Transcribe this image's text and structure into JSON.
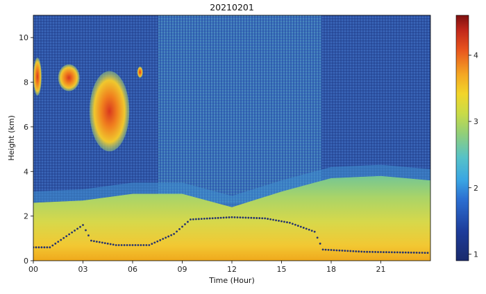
{
  "chart_data": {
    "type": "heatmap",
    "title": "20210201",
    "xlabel": "Time (Hour)",
    "ylabel": "Height (km)",
    "xlim": [
      0,
      24
    ],
    "ylim": [
      0,
      11
    ],
    "x_ticks": [
      {
        "value": 0,
        "label": "00"
      },
      {
        "value": 3,
        "label": "03"
      },
      {
        "value": 6,
        "label": "06"
      },
      {
        "value": 9,
        "label": "09"
      },
      {
        "value": 12,
        "label": "12"
      },
      {
        "value": 15,
        "label": "15"
      },
      {
        "value": 18,
        "label": "18"
      },
      {
        "value": 21,
        "label": "21"
      }
    ],
    "y_ticks": [
      0,
      2,
      4,
      6,
      8,
      10
    ],
    "colorbar": {
      "range": [
        0.9,
        4.6
      ],
      "ticks": [
        1,
        2,
        3,
        4
      ],
      "colormap": "jet"
    },
    "colors": {
      "background_noise": "#2d56a8",
      "boundary_layer": "#f2c233",
      "cloud_core": "#d9381e"
    },
    "features": {
      "boundary_layer_top_km": [
        {
          "x": 0,
          "y": 2.6
        },
        {
          "x": 3,
          "y": 2.7
        },
        {
          "x": 6,
          "y": 3.0
        },
        {
          "x": 9,
          "y": 3.0
        },
        {
          "x": 12,
          "y": 2.4
        },
        {
          "x": 15,
          "y": 3.1
        },
        {
          "x": 18,
          "y": 3.7
        },
        {
          "x": 21,
          "y": 3.8
        },
        {
          "x": 24,
          "y": 3.6
        }
      ],
      "mixing_layer_height_km": [
        {
          "x": 0,
          "y": 0.6
        },
        {
          "x": 1,
          "y": 0.6
        },
        {
          "x": 2,
          "y": 1.1
        },
        {
          "x": 3,
          "y": 1.6
        },
        {
          "x": 3.5,
          "y": 0.9
        },
        {
          "x": 5,
          "y": 0.7
        },
        {
          "x": 7,
          "y": 0.7
        },
        {
          "x": 8.5,
          "y": 1.2
        },
        {
          "x": 9.5,
          "y": 1.85
        },
        {
          "x": 12,
          "y": 1.95
        },
        {
          "x": 14,
          "y": 1.9
        },
        {
          "x": 15.5,
          "y": 1.7
        },
        {
          "x": 17,
          "y": 1.3
        },
        {
          "x": 17.5,
          "y": 0.5
        },
        {
          "x": 20,
          "y": 0.4
        },
        {
          "x": 24,
          "y": 0.35
        }
      ],
      "cloud_values": [
        {
          "time_range": [
            0,
            0.5
          ],
          "height_range": [
            7.4,
            9.1
          ],
          "value": 3.9
        },
        {
          "time_range": [
            1.5,
            2.8
          ],
          "height_range": [
            7.6,
            8.8
          ],
          "value": 3.8
        },
        {
          "time_range": [
            3.4,
            5.8
          ],
          "height_range": [
            4.9,
            8.5
          ],
          "value": 4.0
        },
        {
          "time_range": [
            6.3,
            6.6
          ],
          "height_range": [
            8.2,
            8.7
          ],
          "value": 3.3
        }
      ]
    }
  }
}
